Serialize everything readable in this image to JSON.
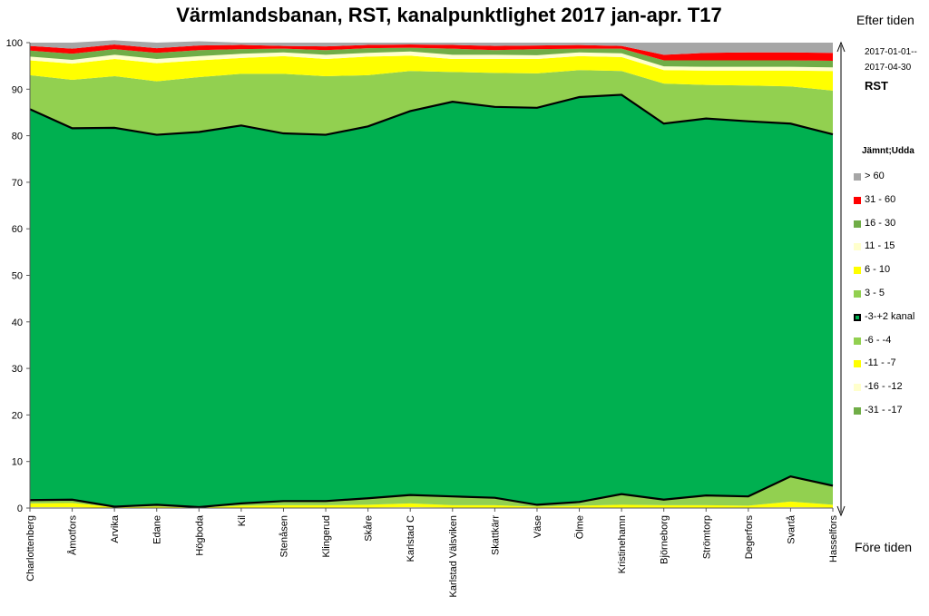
{
  "title": "Värmlandsbanan, RST, kanalpunktlighet 2017 jan-apr. T17",
  "side_labels": {
    "top": "Efter tiden",
    "bottom": "Före tiden"
  },
  "period": {
    "line1": "2017-01-01--",
    "line2": "2017-04-30"
  },
  "series_label": "RST",
  "legend_title": "Jämnt;Udda",
  "legend": [
    {
      "label": "> 60",
      "color": "#a6a6a6"
    },
    {
      "label": "31 - 60",
      "color": "#ff0000"
    },
    {
      "label": "16 - 30",
      "color": "#70ad47"
    },
    {
      "label": "11 - 15",
      "color": "#ffffcc"
    },
    {
      "label": "6 - 10",
      "color": "#ffff00"
    },
    {
      "label": "3 - 5",
      "color": "#92d050"
    },
    {
      "label": "-3-+2 kanal",
      "color": "#00b050",
      "outlined": true
    },
    {
      "label": "-6 - -4",
      "color": "#92d050"
    },
    {
      "label": "-11 - -7",
      "color": "#ffff00"
    },
    {
      "label": "-16 - -12",
      "color": "#ffffcc"
    },
    {
      "label": "-31 - -17",
      "color": "#70ad47"
    }
  ],
  "chart_data": {
    "type": "area",
    "stacked": true,
    "percent_stacked": true,
    "title": "Värmlandsbanan, RST, kanalpunktlighet 2017 jan-apr. T17",
    "ylim": [
      0,
      100
    ],
    "yticks": [
      0,
      10,
      20,
      30,
      40,
      50,
      60,
      70,
      80,
      90,
      100
    ],
    "categories": [
      "Charlottenberg",
      "Åmotfors",
      "Arvika",
      "Edane",
      "Högboda",
      "Kil",
      "Stenåsen",
      "Klingerud",
      "Skåre",
      "Karlstad C",
      "Karlstad Välsviken",
      "Skattkärr",
      "Väse",
      "Ölme",
      "Kristinehamn",
      "Björneborg",
      "Strömtorp",
      "Degerfors",
      "Svartå",
      "Hasselfors"
    ],
    "series": [
      {
        "name": "-31 - -17",
        "color": "#70ad47",
        "values": [
          0,
          0,
          0,
          0,
          0,
          0,
          0,
          0,
          0,
          0,
          0,
          0,
          0,
          0,
          0,
          0,
          0,
          0,
          0,
          0
        ]
      },
      {
        "name": "-16 - -12",
        "color": "#ffffcc",
        "values": [
          0.2,
          0.2,
          0,
          0,
          0,
          0.1,
          0.1,
          0.1,
          0.1,
          0.2,
          0.1,
          0.1,
          0,
          0.1,
          0.1,
          0.1,
          0.1,
          0.1,
          0.2,
          0.1
        ]
      },
      {
        "name": "-11 - -7",
        "color": "#ffff00",
        "values": [
          0.8,
          0.9,
          0.2,
          0.3,
          0.1,
          0.4,
          0.5,
          0.5,
          0.6,
          0.8,
          0.5,
          0.5,
          0.3,
          0.4,
          0.6,
          0.5,
          0.5,
          0.4,
          1.2,
          0.6
        ]
      },
      {
        "name": "-6 - -4",
        "color": "#92d050",
        "values": [
          0.7,
          0.7,
          0.1,
          0.4,
          0.1,
          0.5,
          0.9,
          0.9,
          1.4,
          1.8,
          1.9,
          1.6,
          0.4,
          0.8,
          2.3,
          1.2,
          2.1,
          2.0,
          5.4,
          4.1
        ]
      },
      {
        "name": "-3-+2 kanal",
        "color": "#00b050",
        "outlined": true,
        "values": [
          84.0,
          79.8,
          81.4,
          79.5,
          80.6,
          81.2,
          79.0,
          78.7,
          79.9,
          82.5,
          84.8,
          84.0,
          85.3,
          87.0,
          85.8,
          80.8,
          81.0,
          80.6,
          75.8,
          75.5
        ]
      },
      {
        "name": "3 - 5",
        "color": "#92d050",
        "values": [
          7.3,
          10.4,
          11.1,
          11.5,
          11.8,
          11.1,
          12.8,
          12.6,
          11.0,
          8.6,
          6.4,
          7.3,
          7.4,
          5.8,
          5.1,
          8.6,
          7.2,
          7.7,
          8.0,
          9.4
        ]
      },
      {
        "name": "6 - 10",
        "color": "#ffff00",
        "values": [
          3.2,
          3.5,
          3.7,
          3.9,
          3.6,
          3.4,
          3.8,
          3.7,
          4.0,
          3.3,
          2.8,
          3.0,
          3.1,
          3.0,
          3.0,
          2.9,
          3.1,
          3.2,
          3.4,
          4.2
        ]
      },
      {
        "name": "11 - 15",
        "color": "#ffffcc",
        "values": [
          0.8,
          0.8,
          0.9,
          0.9,
          0.9,
          0.9,
          0.8,
          0.9,
          0.8,
          0.9,
          0.9,
          0.9,
          0.8,
          0.8,
          0.8,
          0.8,
          0.8,
          0.8,
          0.8,
          0.8
        ]
      },
      {
        "name": "16 - 30",
        "color": "#70ad47",
        "values": [
          1.3,
          1.3,
          1.2,
          1.3,
          1.3,
          1.0,
          0.8,
          1.0,
          1.0,
          0.8,
          1.3,
          1.0,
          1.3,
          0.8,
          1.0,
          1.3,
          1.4,
          1.4,
          1.4,
          1.4
        ]
      },
      {
        "name": "31 - 60",
        "color": "#ff0000",
        "values": [
          1.0,
          1.1,
          1.0,
          1.0,
          1.0,
          0.9,
          0.6,
          0.8,
          0.7,
          0.7,
          0.8,
          0.9,
          0.8,
          0.8,
          0.6,
          1.2,
          1.6,
          1.7,
          1.7,
          1.7
        ]
      },
      {
        "name": "> 60",
        "color": "#a6a6a6",
        "values": [
          0.7,
          1.3,
          0.9,
          1.2,
          0.9,
          0.5,
          0.7,
          0.8,
          0.5,
          0.4,
          0.5,
          0.7,
          0.6,
          0.5,
          0.7,
          2.6,
          2.2,
          2.1,
          2.1,
          2.2
        ]
      }
    ],
    "legend_position": "right",
    "grid": false
  }
}
